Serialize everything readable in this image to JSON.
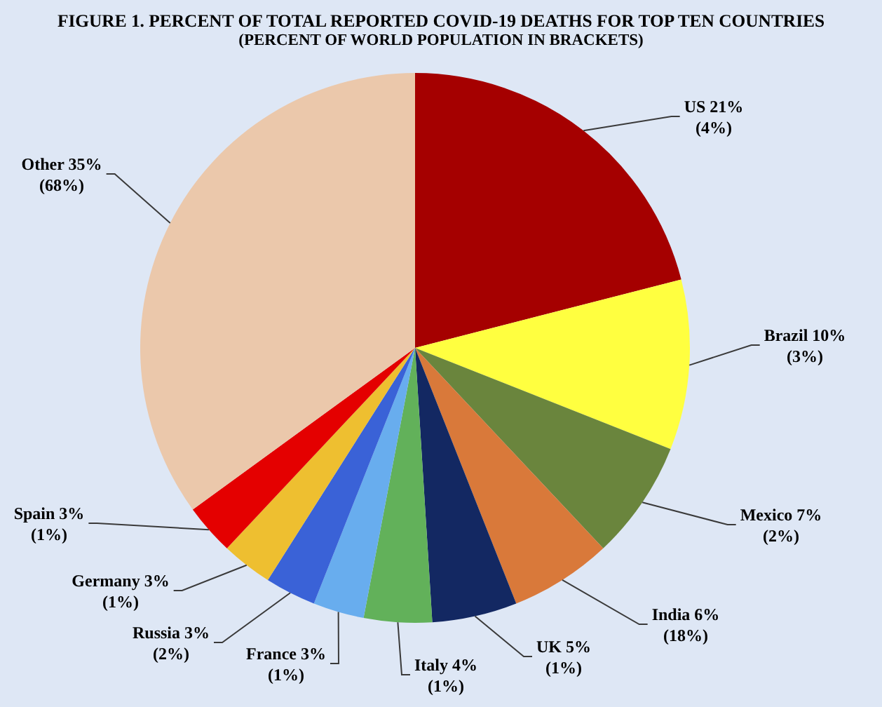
{
  "chart_data": {
    "type": "pie",
    "title": "FIGURE 1. PERCENT OF TOTAL REPORTED COVID-19 DEATHS FOR TOP TEN COUNTRIES",
    "subtitle": "(PERCENT OF WORLD POPULATION IN BRACKETS)",
    "categories": [
      "US",
      "Brazil",
      "Mexico",
      "India",
      "UK",
      "Italy",
      "France",
      "Russia",
      "Germany",
      "Spain",
      "Other"
    ],
    "values": [
      21,
      10,
      7,
      6,
      5,
      4,
      3,
      3,
      3,
      3,
      35
    ],
    "colors": [
      "#a50000",
      "#ffff40",
      "#6a853d",
      "#d9793a",
      "#132862",
      "#62b15a",
      "#68adee",
      "#3a62d7",
      "#eebf30",
      "#e40000",
      "#ebc8ab"
    ],
    "value_labels": [
      "21%\n(4%)",
      "10%\n(3%)",
      "7%\n(2%)",
      "6%\n(18%)",
      "5%\n(1%)",
      "4%\n(1%)",
      "3%\n(1%)",
      "3%\n(2%)",
      "3%\n(1%)",
      "3%\n(1%)",
      "35%\n(68%)"
    ]
  }
}
